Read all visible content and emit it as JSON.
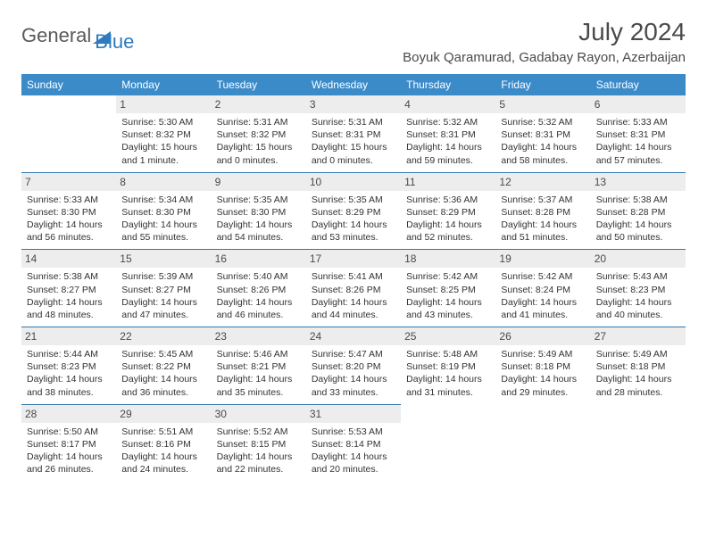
{
  "brand": {
    "name_a": "General",
    "name_b": "Blue"
  },
  "title": "July 2024",
  "location": "Boyuk Qaramurad, Gadabay Rayon, Azerbaijan",
  "colors": {
    "header_bg": "#3b8bc9",
    "daynum_bg": "#ededed",
    "rule": "#2f77ad",
    "text": "#333333"
  },
  "day_headers": [
    "Sunday",
    "Monday",
    "Tuesday",
    "Wednesday",
    "Thursday",
    "Friday",
    "Saturday"
  ],
  "weeks": [
    [
      {
        "num": "",
        "sunrise": "",
        "sunset": "",
        "daylight": ""
      },
      {
        "num": "1",
        "sunrise": "Sunrise: 5:30 AM",
        "sunset": "Sunset: 8:32 PM",
        "daylight": "Daylight: 15 hours and 1 minute."
      },
      {
        "num": "2",
        "sunrise": "Sunrise: 5:31 AM",
        "sunset": "Sunset: 8:32 PM",
        "daylight": "Daylight: 15 hours and 0 minutes."
      },
      {
        "num": "3",
        "sunrise": "Sunrise: 5:31 AM",
        "sunset": "Sunset: 8:31 PM",
        "daylight": "Daylight: 15 hours and 0 minutes."
      },
      {
        "num": "4",
        "sunrise": "Sunrise: 5:32 AM",
        "sunset": "Sunset: 8:31 PM",
        "daylight": "Daylight: 14 hours and 59 minutes."
      },
      {
        "num": "5",
        "sunrise": "Sunrise: 5:32 AM",
        "sunset": "Sunset: 8:31 PM",
        "daylight": "Daylight: 14 hours and 58 minutes."
      },
      {
        "num": "6",
        "sunrise": "Sunrise: 5:33 AM",
        "sunset": "Sunset: 8:31 PM",
        "daylight": "Daylight: 14 hours and 57 minutes."
      }
    ],
    [
      {
        "num": "7",
        "sunrise": "Sunrise: 5:33 AM",
        "sunset": "Sunset: 8:30 PM",
        "daylight": "Daylight: 14 hours and 56 minutes."
      },
      {
        "num": "8",
        "sunrise": "Sunrise: 5:34 AM",
        "sunset": "Sunset: 8:30 PM",
        "daylight": "Daylight: 14 hours and 55 minutes."
      },
      {
        "num": "9",
        "sunrise": "Sunrise: 5:35 AM",
        "sunset": "Sunset: 8:30 PM",
        "daylight": "Daylight: 14 hours and 54 minutes."
      },
      {
        "num": "10",
        "sunrise": "Sunrise: 5:35 AM",
        "sunset": "Sunset: 8:29 PM",
        "daylight": "Daylight: 14 hours and 53 minutes."
      },
      {
        "num": "11",
        "sunrise": "Sunrise: 5:36 AM",
        "sunset": "Sunset: 8:29 PM",
        "daylight": "Daylight: 14 hours and 52 minutes."
      },
      {
        "num": "12",
        "sunrise": "Sunrise: 5:37 AM",
        "sunset": "Sunset: 8:28 PM",
        "daylight": "Daylight: 14 hours and 51 minutes."
      },
      {
        "num": "13",
        "sunrise": "Sunrise: 5:38 AM",
        "sunset": "Sunset: 8:28 PM",
        "daylight": "Daylight: 14 hours and 50 minutes."
      }
    ],
    [
      {
        "num": "14",
        "sunrise": "Sunrise: 5:38 AM",
        "sunset": "Sunset: 8:27 PM",
        "daylight": "Daylight: 14 hours and 48 minutes."
      },
      {
        "num": "15",
        "sunrise": "Sunrise: 5:39 AM",
        "sunset": "Sunset: 8:27 PM",
        "daylight": "Daylight: 14 hours and 47 minutes."
      },
      {
        "num": "16",
        "sunrise": "Sunrise: 5:40 AM",
        "sunset": "Sunset: 8:26 PM",
        "daylight": "Daylight: 14 hours and 46 minutes."
      },
      {
        "num": "17",
        "sunrise": "Sunrise: 5:41 AM",
        "sunset": "Sunset: 8:26 PM",
        "daylight": "Daylight: 14 hours and 44 minutes."
      },
      {
        "num": "18",
        "sunrise": "Sunrise: 5:42 AM",
        "sunset": "Sunset: 8:25 PM",
        "daylight": "Daylight: 14 hours and 43 minutes."
      },
      {
        "num": "19",
        "sunrise": "Sunrise: 5:42 AM",
        "sunset": "Sunset: 8:24 PM",
        "daylight": "Daylight: 14 hours and 41 minutes."
      },
      {
        "num": "20",
        "sunrise": "Sunrise: 5:43 AM",
        "sunset": "Sunset: 8:23 PM",
        "daylight": "Daylight: 14 hours and 40 minutes."
      }
    ],
    [
      {
        "num": "21",
        "sunrise": "Sunrise: 5:44 AM",
        "sunset": "Sunset: 8:23 PM",
        "daylight": "Daylight: 14 hours and 38 minutes."
      },
      {
        "num": "22",
        "sunrise": "Sunrise: 5:45 AM",
        "sunset": "Sunset: 8:22 PM",
        "daylight": "Daylight: 14 hours and 36 minutes."
      },
      {
        "num": "23",
        "sunrise": "Sunrise: 5:46 AM",
        "sunset": "Sunset: 8:21 PM",
        "daylight": "Daylight: 14 hours and 35 minutes."
      },
      {
        "num": "24",
        "sunrise": "Sunrise: 5:47 AM",
        "sunset": "Sunset: 8:20 PM",
        "daylight": "Daylight: 14 hours and 33 minutes."
      },
      {
        "num": "25",
        "sunrise": "Sunrise: 5:48 AM",
        "sunset": "Sunset: 8:19 PM",
        "daylight": "Daylight: 14 hours and 31 minutes."
      },
      {
        "num": "26",
        "sunrise": "Sunrise: 5:49 AM",
        "sunset": "Sunset: 8:18 PM",
        "daylight": "Daylight: 14 hours and 29 minutes."
      },
      {
        "num": "27",
        "sunrise": "Sunrise: 5:49 AM",
        "sunset": "Sunset: 8:18 PM",
        "daylight": "Daylight: 14 hours and 28 minutes."
      }
    ],
    [
      {
        "num": "28",
        "sunrise": "Sunrise: 5:50 AM",
        "sunset": "Sunset: 8:17 PM",
        "daylight": "Daylight: 14 hours and 26 minutes."
      },
      {
        "num": "29",
        "sunrise": "Sunrise: 5:51 AM",
        "sunset": "Sunset: 8:16 PM",
        "daylight": "Daylight: 14 hours and 24 minutes."
      },
      {
        "num": "30",
        "sunrise": "Sunrise: 5:52 AM",
        "sunset": "Sunset: 8:15 PM",
        "daylight": "Daylight: 14 hours and 22 minutes."
      },
      {
        "num": "31",
        "sunrise": "Sunrise: 5:53 AM",
        "sunset": "Sunset: 8:14 PM",
        "daylight": "Daylight: 14 hours and 20 minutes."
      },
      {
        "num": "",
        "sunrise": "",
        "sunset": "",
        "daylight": ""
      },
      {
        "num": "",
        "sunrise": "",
        "sunset": "",
        "daylight": ""
      },
      {
        "num": "",
        "sunrise": "",
        "sunset": "",
        "daylight": ""
      }
    ]
  ]
}
